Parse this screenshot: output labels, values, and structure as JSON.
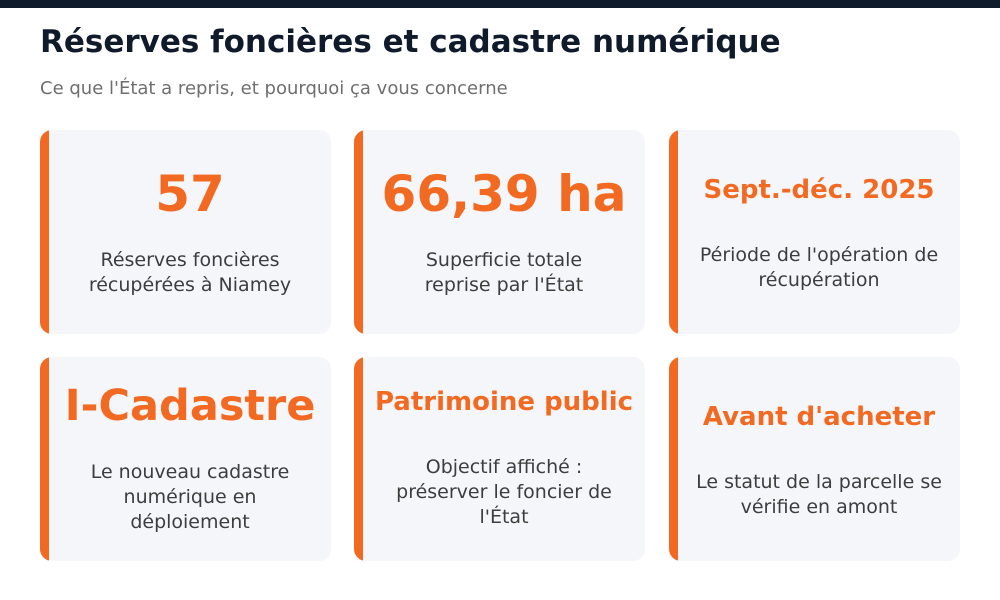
{
  "header": {
    "title": "Réserves foncières et cadastre numérique",
    "subtitle": "Ce que l'État a repris, et pourquoi ça vous concerne"
  },
  "colors": {
    "accent": "#f26a21",
    "title": "#0f1a2b",
    "card_background": "#f5f6fa",
    "top_bar": "#0f1a2b"
  },
  "cards": [
    {
      "value": "57",
      "description": "Réserves foncières récupérées à Niamey"
    },
    {
      "value": "66,39 ha",
      "description": "Superficie totale reprise par l'État"
    },
    {
      "value": "Sept.-déc. 2025",
      "description": "Période de l'opération de récupération"
    },
    {
      "value": "I-Cadastre",
      "description": "Le nouveau cadastre numérique en déploiement"
    },
    {
      "value": "Patrimoine public",
      "description": "Objectif affiché : préserver le foncier de l'État"
    },
    {
      "value": "Avant d'acheter",
      "description": "Le statut de la parcelle se vérifie en amont"
    }
  ]
}
